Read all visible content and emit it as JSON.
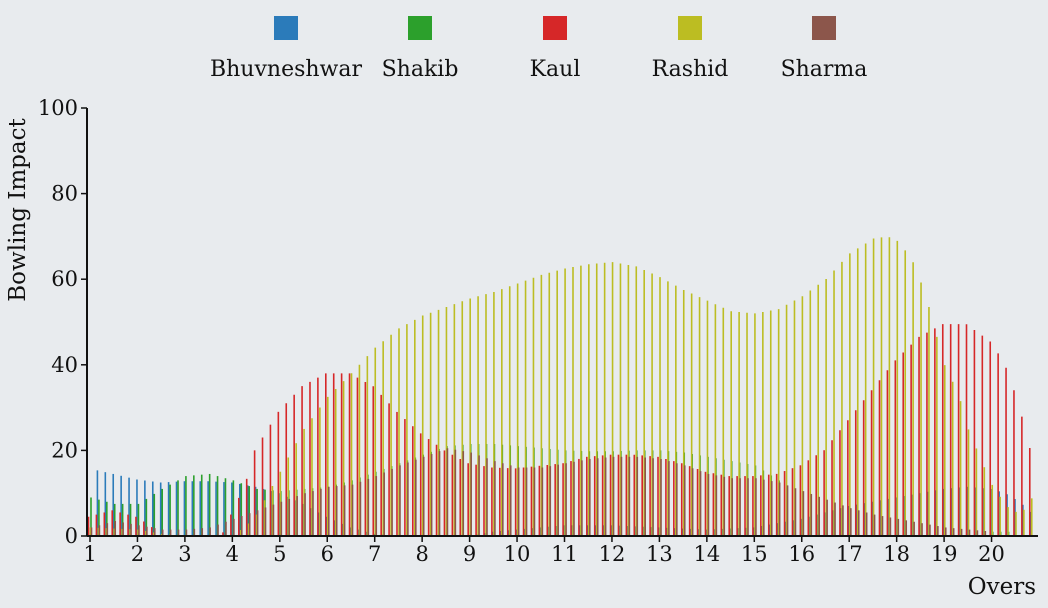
{
  "chart_data": {
    "type": "bar",
    "title": "",
    "xlabel": "Overs",
    "ylabel": "Bowling Impact",
    "ylim": [
      0,
      100
    ],
    "xlim": [
      1,
      20.95
    ],
    "grid": false,
    "legend_position": "top",
    "x_ticks": [
      1,
      2,
      3,
      4,
      5,
      6,
      7,
      8,
      9,
      10,
      11,
      12,
      13,
      14,
      15,
      16,
      17,
      18,
      19,
      20
    ],
    "y_ticks": [
      0,
      20,
      40,
      60,
      80,
      100
    ],
    "series": [
      {
        "name": "Bhuvneshwar",
        "color": "#2b7bba",
        "points": [
          [
            1.1,
            15.5
          ],
          [
            1.5,
            14.5
          ],
          [
            2.0,
            13.2
          ],
          [
            2.5,
            12.5
          ],
          [
            3.0,
            12.8
          ],
          [
            3.5,
            12.8
          ],
          [
            4.0,
            12.5
          ],
          [
            4.5,
            11.5
          ],
          [
            5.0,
            10
          ],
          [
            5.5,
            7.5
          ],
          [
            6.0,
            4.5
          ],
          [
            6.5,
            2.0
          ],
          [
            7.0,
            0.5
          ],
          [
            7.5,
            0
          ],
          [
            9.0,
            0
          ],
          [
            9.5,
            1.0
          ],
          [
            10.0,
            1.5
          ],
          [
            11.0,
            2.5
          ],
          [
            12.0,
            2.5
          ],
          [
            13.0,
            2.0
          ],
          [
            14.0,
            1.5
          ],
          [
            15.0,
            2.0
          ],
          [
            16.0,
            4.0
          ],
          [
            16.5,
            5.5
          ],
          [
            17.0,
            7.0
          ],
          [
            17.5,
            8.0
          ],
          [
            18.0,
            9.0
          ],
          [
            18.5,
            10.0
          ],
          [
            19.0,
            11.0
          ],
          [
            19.5,
            11.5
          ],
          [
            20.0,
            11.0
          ],
          [
            20.3,
            10.0
          ],
          [
            20.6,
            8.0
          ],
          [
            20.85,
            5.5
          ]
        ]
      },
      {
        "name": "Shakib",
        "color": "#2ca02c",
        "points": [
          [
            1.0,
            9.0
          ],
          [
            1.5,
            7.5
          ],
          [
            2.0,
            7.5
          ],
          [
            2.5,
            11.0
          ],
          [
            3.0,
            14.0
          ],
          [
            3.5,
            14.5
          ],
          [
            4.0,
            13.0
          ],
          [
            4.5,
            11.0
          ],
          [
            5.0,
            10.5
          ],
          [
            5.5,
            11.0
          ],
          [
            6.0,
            11.5
          ],
          [
            6.5,
            13.0
          ],
          [
            7.0,
            15.0
          ],
          [
            7.5,
            17.0
          ],
          [
            8.0,
            19.0
          ],
          [
            8.5,
            21.0
          ],
          [
            9.0,
            21.5
          ],
          [
            9.5,
            21.5
          ],
          [
            10.0,
            21.0
          ],
          [
            10.5,
            20.5
          ],
          [
            11.0,
            20.0
          ],
          [
            11.5,
            19.8
          ],
          [
            12.0,
            19.8
          ],
          [
            12.5,
            20.0
          ],
          [
            13.0,
            20.0
          ],
          [
            13.5,
            19.5
          ],
          [
            14.0,
            18.5
          ],
          [
            14.5,
            17.5
          ],
          [
            15.0,
            16.5
          ],
          [
            15.5,
            13.0
          ],
          [
            16.0,
            9.5
          ],
          [
            16.5,
            7.5
          ],
          [
            17.0,
            6.5
          ],
          [
            17.5,
            5.0
          ],
          [
            18.0,
            3.0
          ],
          [
            18.5,
            2.0
          ],
          [
            19.0,
            1.5
          ],
          [
            19.5,
            1.0
          ],
          [
            20.0,
            1.0
          ],
          [
            20.5,
            1.0
          ]
        ]
      },
      {
        "name": "Kaul",
        "color": "#d62728",
        "points": [
          [
            1.0,
            4.5
          ],
          [
            1.5,
            6.0
          ],
          [
            2.0,
            4.5
          ],
          [
            2.3,
            2.5
          ],
          [
            2.5,
            0
          ],
          [
            3.8,
            0
          ],
          [
            4.0,
            5.0
          ],
          [
            4.3,
            12.0
          ],
          [
            4.5,
            20.0
          ],
          [
            5.0,
            29.0
          ],
          [
            5.5,
            35.0
          ],
          [
            6.0,
            38.0
          ],
          [
            6.5,
            38.0
          ],
          [
            7.0,
            35.0
          ],
          [
            7.5,
            29.0
          ],
          [
            8.0,
            24.0
          ],
          [
            8.5,
            20.0
          ],
          [
            9.0,
            17.0
          ],
          [
            9.5,
            16.0
          ],
          [
            10.0,
            15.8
          ],
          [
            11.0,
            17.0
          ],
          [
            11.5,
            18.5
          ],
          [
            12.0,
            19.0
          ],
          [
            12.5,
            19.0
          ],
          [
            13.0,
            18.5
          ],
          [
            13.5,
            17.0
          ],
          [
            14.0,
            15.0
          ],
          [
            14.5,
            14.0
          ],
          [
            15.0,
            14.0
          ],
          [
            15.5,
            14.5
          ],
          [
            16.0,
            16.5
          ],
          [
            16.5,
            20.0
          ],
          [
            17.0,
            27.0
          ],
          [
            17.5,
            34.0
          ],
          [
            18.0,
            41.0
          ],
          [
            18.5,
            46.5
          ],
          [
            19.0,
            49.5
          ],
          [
            19.5,
            49.5
          ],
          [
            20.0,
            45.5
          ],
          [
            20.3,
            40.5
          ],
          [
            20.6,
            31.0
          ],
          [
            20.85,
            20.0
          ]
        ]
      },
      {
        "name": "Rashid",
        "color": "#bcbd22",
        "points": [
          [
            1.0,
            2.0
          ],
          [
            2.0,
            1.5
          ],
          [
            2.5,
            0.5
          ],
          [
            3.0,
            0
          ],
          [
            4.0,
            0
          ],
          [
            4.3,
            2.5
          ],
          [
            4.5,
            5.0
          ],
          [
            5.0,
            15.0
          ],
          [
            5.5,
            25.0
          ],
          [
            6.0,
            32.5
          ],
          [
            6.5,
            38.0
          ],
          [
            7.0,
            44.0
          ],
          [
            7.5,
            48.5
          ],
          [
            8.0,
            51.5
          ],
          [
            8.5,
            53.5
          ],
          [
            9.0,
            55.5
          ],
          [
            9.5,
            57.0
          ],
          [
            10.0,
            59.0
          ],
          [
            10.5,
            61.0
          ],
          [
            11.0,
            62.5
          ],
          [
            11.5,
            63.5
          ],
          [
            12.0,
            64.0
          ],
          [
            12.5,
            63.0
          ],
          [
            13.0,
            60.5
          ],
          [
            13.5,
            57.5
          ],
          [
            14.0,
            55.0
          ],
          [
            14.5,
            52.5
          ],
          [
            15.0,
            52.0
          ],
          [
            15.5,
            53.0
          ],
          [
            16.0,
            56.0
          ],
          [
            16.5,
            60.0
          ],
          [
            17.0,
            66.0
          ],
          [
            17.5,
            69.5
          ],
          [
            17.8,
            70.0
          ],
          [
            18.0,
            69.0
          ],
          [
            18.3,
            65.0
          ],
          [
            18.6,
            56.5
          ],
          [
            18.8,
            48.0
          ],
          [
            19.0,
            40.0
          ],
          [
            19.3,
            33.0
          ],
          [
            19.5,
            25.0
          ],
          [
            19.8,
            17.0
          ],
          [
            20.0,
            12.0
          ],
          [
            20.3,
            7.0
          ],
          [
            20.6,
            5.0
          ],
          [
            20.85,
            9.0
          ],
          [
            20.95,
            35.0
          ]
        ]
      },
      {
        "name": "Sharma",
        "color": "#8c564b",
        "points": [
          [
            1.0,
            2.0
          ],
          [
            1.5,
            3.5
          ],
          [
            2.0,
            2.5
          ],
          [
            2.5,
            1.5
          ],
          [
            3.0,
            1.5
          ],
          [
            3.5,
            2.0
          ],
          [
            4.0,
            4.0
          ],
          [
            4.5,
            6.0
          ],
          [
            5.0,
            8.0
          ],
          [
            5.5,
            10.0
          ],
          [
            6.0,
            11.5
          ],
          [
            6.5,
            12.0
          ],
          [
            7.0,
            14.0
          ],
          [
            7.5,
            16.5
          ],
          [
            8.0,
            18.5
          ],
          [
            8.5,
            20.5
          ],
          [
            9.0,
            19.5
          ],
          [
            9.5,
            17.5
          ],
          [
            10.0,
            16.0
          ],
          [
            10.5,
            16.0
          ],
          [
            11.0,
            17.0
          ],
          [
            11.5,
            18.0
          ],
          [
            12.0,
            18.5
          ],
          [
            12.5,
            18.5
          ],
          [
            13.0,
            18.0
          ],
          [
            13.5,
            16.5
          ],
          [
            14.0,
            14.5
          ],
          [
            14.5,
            13.5
          ],
          [
            15.0,
            13.5
          ],
          [
            15.5,
            12.5
          ],
          [
            16.0,
            10.5
          ],
          [
            16.5,
            8.5
          ],
          [
            17.0,
            6.5
          ],
          [
            17.5,
            5.0
          ],
          [
            18.0,
            4.0
          ],
          [
            18.5,
            3.0
          ],
          [
            19.0,
            2.0
          ],
          [
            19.5,
            1.5
          ],
          [
            20.0,
            1.0
          ]
        ]
      }
    ]
  }
}
